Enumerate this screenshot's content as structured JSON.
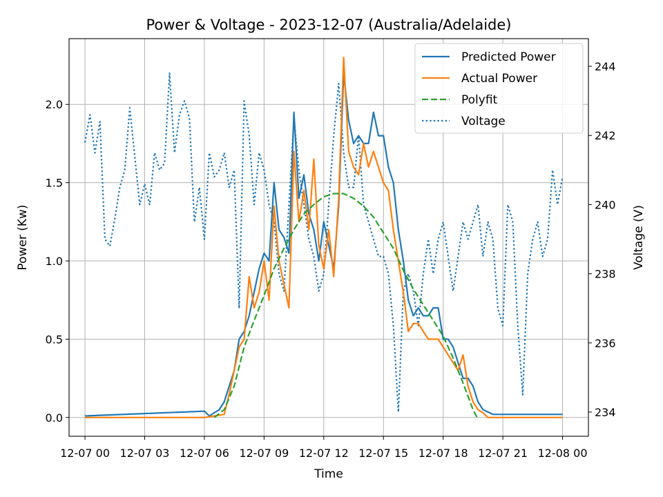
{
  "chart_data": {
    "type": "line",
    "title": "Power & Voltage - 2023-12-07 (Australia/Adelaide)",
    "xlabel": "Time",
    "ylabel": "Power (Kw)",
    "y2label": "Voltage (V)",
    "xlim": [
      -0.8,
      25.3
    ],
    "ylim": [
      -0.12,
      2.42
    ],
    "y2lim": [
      233.3,
      244.8
    ],
    "x_tick_values": [
      0,
      3,
      6,
      9,
      12,
      15,
      18,
      21,
      24
    ],
    "x_tick_labels": [
      "12-07 00",
      "12-07 03",
      "12-07 06",
      "12-07 09",
      "12-07 12",
      "12-07 15",
      "12-07 18",
      "12-07 21",
      "12-08 00"
    ],
    "y_ticks": [
      "0.0",
      "0.5",
      "1.0",
      "1.5",
      "2.0"
    ],
    "y2_ticks": [
      "234",
      "236",
      "238",
      "240",
      "242",
      "244"
    ],
    "grid": true,
    "legend_position": "top-right",
    "series": [
      {
        "name": "Predicted Power",
        "axis": "left",
        "color": "#1f77b4",
        "style": "solid",
        "x": [
          0,
          6,
          6.25,
          6.5,
          6.75,
          7,
          7.25,
          7.5,
          7.75,
          8,
          8.25,
          8.5,
          8.75,
          9,
          9.25,
          9.5,
          9.75,
          10,
          10.25,
          10.5,
          10.75,
          11,
          11.25,
          11.5,
          11.75,
          12,
          12.25,
          12.5,
          12.75,
          13,
          13.25,
          13.5,
          13.75,
          14,
          14.25,
          14.5,
          14.75,
          15,
          15.25,
          15.5,
          15.75,
          16,
          16.25,
          16.5,
          16.75,
          17,
          17.25,
          17.5,
          17.75,
          18,
          18.25,
          18.5,
          18.75,
          19,
          19.25,
          19.5,
          19.75,
          20,
          20.5,
          24
        ],
        "values": [
          0.01,
          0.04,
          0.01,
          0.03,
          0.05,
          0.1,
          0.2,
          0.3,
          0.5,
          0.55,
          0.65,
          0.8,
          0.95,
          1.05,
          1.0,
          1.5,
          1.2,
          1.15,
          1.05,
          1.95,
          1.4,
          1.55,
          1.3,
          1.2,
          1.0,
          1.25,
          1.1,
          0.95,
          1.35,
          2.2,
          1.9,
          1.75,
          1.8,
          1.75,
          1.75,
          1.95,
          1.8,
          1.8,
          1.6,
          1.5,
          1.2,
          1.0,
          0.75,
          0.65,
          0.7,
          0.65,
          0.65,
          0.7,
          0.7,
          0.5,
          0.5,
          0.45,
          0.35,
          0.25,
          0.25,
          0.2,
          0.1,
          0.05,
          0.02,
          0.02
        ]
      },
      {
        "name": "Actual Power",
        "axis": "left",
        "color": "#ff7f0e",
        "style": "solid",
        "x": [
          0,
          6,
          7,
          7.25,
          7.5,
          7.75,
          8,
          8.25,
          8.5,
          8.75,
          9,
          9.25,
          9.5,
          9.75,
          10,
          10.25,
          10.5,
          10.75,
          11,
          11.25,
          11.5,
          11.75,
          12,
          12.25,
          12.5,
          12.75,
          13,
          13.25,
          13.5,
          13.75,
          14,
          14.25,
          14.5,
          14.75,
          15,
          15.25,
          15.5,
          15.75,
          16,
          16.25,
          16.5,
          16.75,
          17,
          17.25,
          17.5,
          17.75,
          18,
          18.25,
          18.5,
          18.75,
          19,
          19.25,
          19.5,
          19.75,
          20,
          20.25,
          21,
          24
        ],
        "values": [
          0,
          0,
          0.02,
          0.15,
          0.3,
          0.45,
          0.5,
          0.9,
          0.7,
          0.8,
          1.0,
          0.75,
          1.35,
          1.0,
          0.85,
          0.7,
          1.7,
          1.25,
          1.45,
          1.2,
          1.65,
          1.1,
          0.95,
          1.2,
          0.9,
          1.4,
          2.3,
          1.7,
          1.6,
          1.55,
          1.75,
          1.6,
          1.7,
          1.6,
          1.5,
          1.45,
          1.2,
          1.0,
          0.8,
          0.55,
          0.6,
          0.6,
          0.55,
          0.5,
          0.5,
          0.5,
          0.45,
          0.4,
          0.35,
          0.3,
          0.4,
          0.2,
          0.1,
          0.05,
          0.03,
          0,
          0,
          0
        ]
      },
      {
        "name": "Polyfit",
        "axis": "left",
        "color": "#2ca02c",
        "style": "dashed",
        "x": [
          6.5,
          7,
          7.5,
          8,
          8.5,
          9,
          9.5,
          10,
          10.5,
          11,
          11.5,
          12,
          12.5,
          13,
          13.5,
          14,
          14.5,
          15,
          15.5,
          16,
          16.5,
          17,
          17.5,
          18,
          18.5,
          19,
          19.5,
          19.7
        ],
        "values": [
          0.0,
          0.05,
          0.2,
          0.45,
          0.62,
          0.78,
          0.95,
          1.08,
          1.2,
          1.3,
          1.36,
          1.41,
          1.43,
          1.43,
          1.4,
          1.35,
          1.28,
          1.18,
          1.08,
          0.94,
          0.82,
          0.72,
          0.62,
          0.52,
          0.38,
          0.22,
          0.05,
          0.0
        ]
      },
      {
        "name": "Voltage",
        "axis": "right",
        "color": "#1f77b4",
        "style": "dotted",
        "x": [
          0,
          0.25,
          0.5,
          0.75,
          1,
          1.25,
          1.5,
          1.75,
          2,
          2.25,
          2.5,
          2.75,
          3,
          3.25,
          3.5,
          3.75,
          4,
          4.25,
          4.5,
          4.75,
          5,
          5.25,
          5.5,
          5.75,
          6,
          6.25,
          6.5,
          6.75,
          7,
          7.25,
          7.5,
          7.75,
          8,
          8.25,
          8.5,
          8.75,
          9,
          9.25,
          9.5,
          9.75,
          10,
          10.25,
          10.5,
          10.75,
          11,
          11.25,
          11.5,
          11.75,
          12,
          12.25,
          12.5,
          12.75,
          13,
          13.25,
          13.5,
          13.75,
          14,
          14.25,
          14.5,
          14.75,
          15,
          15.25,
          15.5,
          15.75,
          16,
          16.25,
          16.5,
          16.75,
          17,
          17.25,
          17.5,
          17.75,
          18,
          18.25,
          18.5,
          18.75,
          19,
          19.25,
          19.5,
          19.75,
          20,
          20.25,
          20.5,
          20.75,
          21,
          21.25,
          21.5,
          21.75,
          22,
          22.25,
          22.5,
          22.75,
          23,
          23.25,
          23.5,
          23.75,
          24
        ],
        "values": [
          241.8,
          242.6,
          241.5,
          242.4,
          239.0,
          238.8,
          239.6,
          240.5,
          241.0,
          242.8,
          241.4,
          240.0,
          240.6,
          240.0,
          241.5,
          241.0,
          241.2,
          243.8,
          241.5,
          242.6,
          243.0,
          242.5,
          239.5,
          240.5,
          239.0,
          241.5,
          240.8,
          241.0,
          241.5,
          240.5,
          241.0,
          237.0,
          243.0,
          242.0,
          240.0,
          241.5,
          241.0,
          240.0,
          239.5,
          238.0,
          237.5,
          240.0,
          242.5,
          241.0,
          240.0,
          239.0,
          238.5,
          237.5,
          238.0,
          240.0,
          242.0,
          243.5,
          241.5,
          240.5,
          240.5,
          242.0,
          240.0,
          239.5,
          239.0,
          238.5,
          238.5,
          238.0,
          236.5,
          234.0,
          237.5,
          238.0,
          237.5,
          236.5,
          238.0,
          239.0,
          238.0,
          239.0,
          239.5,
          238.5,
          237.5,
          238.5,
          239.5,
          239.0,
          239.5,
          240.0,
          238.5,
          239.5,
          239.0,
          237.0,
          236.5,
          240.0,
          239.5,
          236.5,
          234.5,
          238.0,
          239.0,
          239.5,
          238.5,
          239.0,
          241.0,
          240.0,
          240.8
        ]
      }
    ]
  }
}
